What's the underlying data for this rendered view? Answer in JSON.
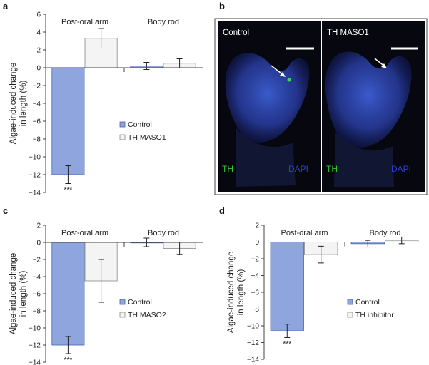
{
  "colors": {
    "control": "#8ea5de",
    "control_edge": "#4a63ad",
    "treatment": "#f4f4f4",
    "treatment_edge": "#888888"
  },
  "chart_data": [
    {
      "panel": "a",
      "type": "bar",
      "ylabel": "Algae-induced change in length (%)",
      "ylim": [
        -14,
        6
      ],
      "yticks": [
        6,
        4,
        2,
        0,
        -2,
        -4,
        -6,
        -8,
        -10,
        -12,
        -14
      ],
      "groups": [
        "Post-oral arm",
        "Body rod"
      ],
      "series": [
        {
          "name": "Control",
          "values": [
            -12.0,
            0.2
          ],
          "errors": [
            1.0,
            0.4
          ]
        },
        {
          "name": "TH MASO1",
          "values": [
            3.3,
            0.5
          ],
          "errors": [
            1.1,
            0.5
          ]
        }
      ],
      "annotations": [
        "***"
      ],
      "legend": "right"
    },
    {
      "panel": "c",
      "type": "bar",
      "ylabel": "Algae-induced change in length (%)",
      "ylim": [
        -14,
        2
      ],
      "yticks": [
        2,
        0,
        -2,
        -4,
        -6,
        -8,
        -10,
        -12,
        -14
      ],
      "groups": [
        "Post-oral arm",
        "Body rod"
      ],
      "series": [
        {
          "name": "Control",
          "values": [
            -12.0,
            0.0
          ],
          "errors": [
            1.0,
            0.5
          ]
        },
        {
          "name": "TH MASO2",
          "values": [
            -4.5,
            -0.7
          ],
          "errors": [
            2.5,
            0.7
          ]
        }
      ],
      "annotations": [
        "***"
      ],
      "legend": "right"
    },
    {
      "panel": "d",
      "type": "bar",
      "ylabel": "Algae-induced change in length (%)",
      "ylim": [
        -14,
        2
      ],
      "yticks": [
        2,
        0,
        -2,
        -4,
        -6,
        -8,
        -10,
        -12,
        -14
      ],
      "groups": [
        "Post-oral arm",
        "Body rod"
      ],
      "series": [
        {
          "name": "Control",
          "values": [
            -10.6,
            -0.2
          ],
          "errors": [
            0.8,
            0.4
          ]
        },
        {
          "name": "TH inhibitor",
          "values": [
            -1.5,
            0.2
          ],
          "errors": [
            1.0,
            0.4
          ]
        }
      ],
      "annotations": [
        "***"
      ],
      "legend": "right"
    }
  ],
  "micrograph": {
    "panel": "b",
    "images": [
      {
        "title": "Control",
        "stain_left": "TH",
        "stain_right": "DAPI"
      },
      {
        "title": "TH MASO1",
        "stain_left": "TH",
        "stain_right": "DAPI"
      }
    ]
  }
}
